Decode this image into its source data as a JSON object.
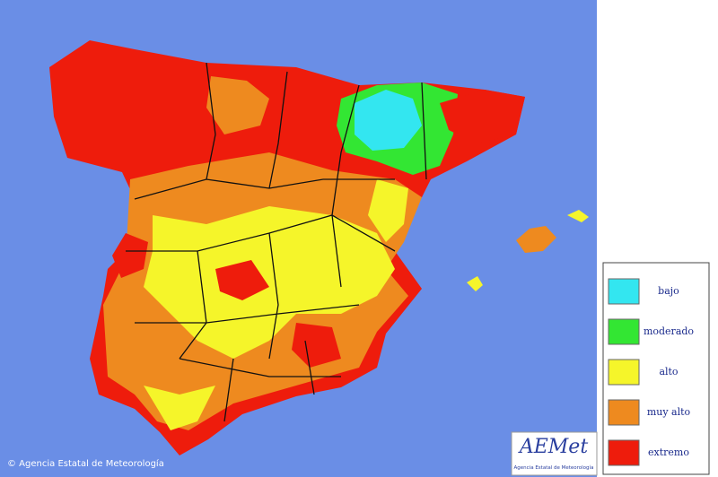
{
  "legend": {
    "items": [
      {
        "label": "bajo",
        "color": "#33e6f0"
      },
      {
        "label": "moderado",
        "color": "#33e633"
      },
      {
        "label": "alto",
        "color": "#f5f52a"
      },
      {
        "label": "muy alto",
        "color": "#ee8a1f"
      },
      {
        "label": "extremo",
        "color": "#ee1c0c"
      }
    ]
  },
  "footer": {
    "copyright": "© Agencia Estatal de Meteorología"
  },
  "logo": {
    "name": "AEMet",
    "subtitle": "Agencia Estatal de Meteorología"
  }
}
